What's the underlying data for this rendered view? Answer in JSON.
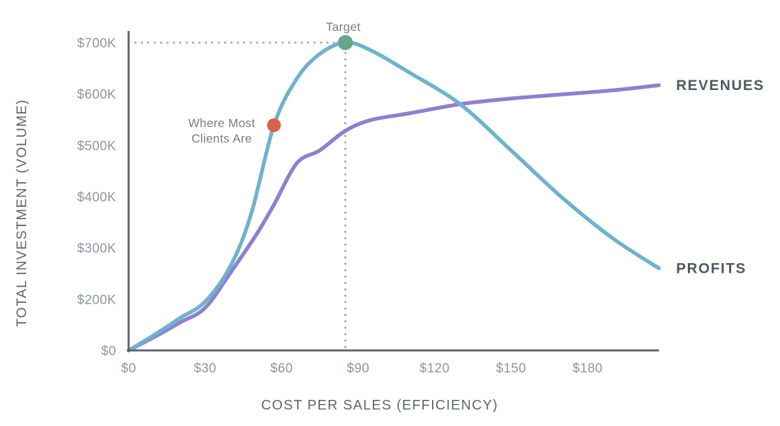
{
  "chart_data": {
    "type": "line",
    "title": "",
    "xlabel": "COST PER SALES (EFFICIENCY)",
    "ylabel": "TOTAL INVESTMENT (VOLUME)",
    "x_ticks": [
      {
        "label": "$0",
        "value": 0
      },
      {
        "label": "$30",
        "value": 30
      },
      {
        "label": "$60",
        "value": 60
      },
      {
        "label": "$90",
        "value": 90
      },
      {
        "label": "$120",
        "value": 120
      },
      {
        "label": "$150",
        "value": 150
      },
      {
        "label": "$180",
        "value": 180
      }
    ],
    "y_ticks": [
      {
        "label": "$0",
        "value": 0
      },
      {
        "label": "$200K",
        "value": 200
      },
      {
        "label": "$300K",
        "value": 300
      },
      {
        "label": "$400K",
        "value": 400
      },
      {
        "label": "$500K",
        "value": 500
      },
      {
        "label": "$600K",
        "value": 600
      },
      {
        "label": "$700K",
        "value": 700
      }
    ],
    "x_range": [
      0,
      208
    ],
    "grid": false,
    "legend_position": "end-of-line-labels",
    "series": [
      {
        "name": "REVENUES",
        "color": "#8f7fd1",
        "x": [
          0,
          10,
          20,
          30,
          40,
          50,
          57,
          66,
          75,
          85,
          95,
          110,
          130,
          150,
          170,
          190,
          208
        ],
        "y": [
          0,
          52,
          108,
          166,
          252,
          325,
          384,
          465,
          490,
          528,
          549,
          562,
          580,
          591,
          599,
          607,
          617
        ]
      },
      {
        "name": "PROFITS",
        "color": "#6db3cb",
        "x": [
          0,
          10,
          20,
          30,
          40,
          48,
          57,
          66,
          75,
          85,
          95,
          110,
          130,
          150,
          170,
          190,
          208
        ],
        "y": [
          0,
          60,
          125,
          190,
          265,
          365,
          539,
          630,
          678,
          700,
          685,
          642,
          580,
          490,
          398,
          318,
          260
        ]
      }
    ],
    "annotations": [
      {
        "label_lines": [
          "Target"
        ],
        "x": 85,
        "y": 700,
        "dot_color": "#64a88c",
        "dot_radius": 11,
        "label_position": "above"
      },
      {
        "label_lines": [
          "Where Most",
          "Clients Are"
        ],
        "x": 57,
        "y": 539,
        "dot_color": "#d9634c",
        "dot_radius": 10,
        "label_position": "left"
      }
    ],
    "guides": [
      {
        "orientation": "horizontal",
        "at_value": 700,
        "until_x": 85
      },
      {
        "orientation": "vertical",
        "at_value": 85,
        "from_y": 700
      }
    ],
    "colors": {
      "axis": "#5c646d",
      "tick_text": "#8e959e",
      "axis_title_text": "#5d666f",
      "series_label_text": "#4e5860",
      "annotation_text": "#757e87",
      "guide_dots": "#9ba2a9",
      "background": "#ffffff"
    }
  }
}
